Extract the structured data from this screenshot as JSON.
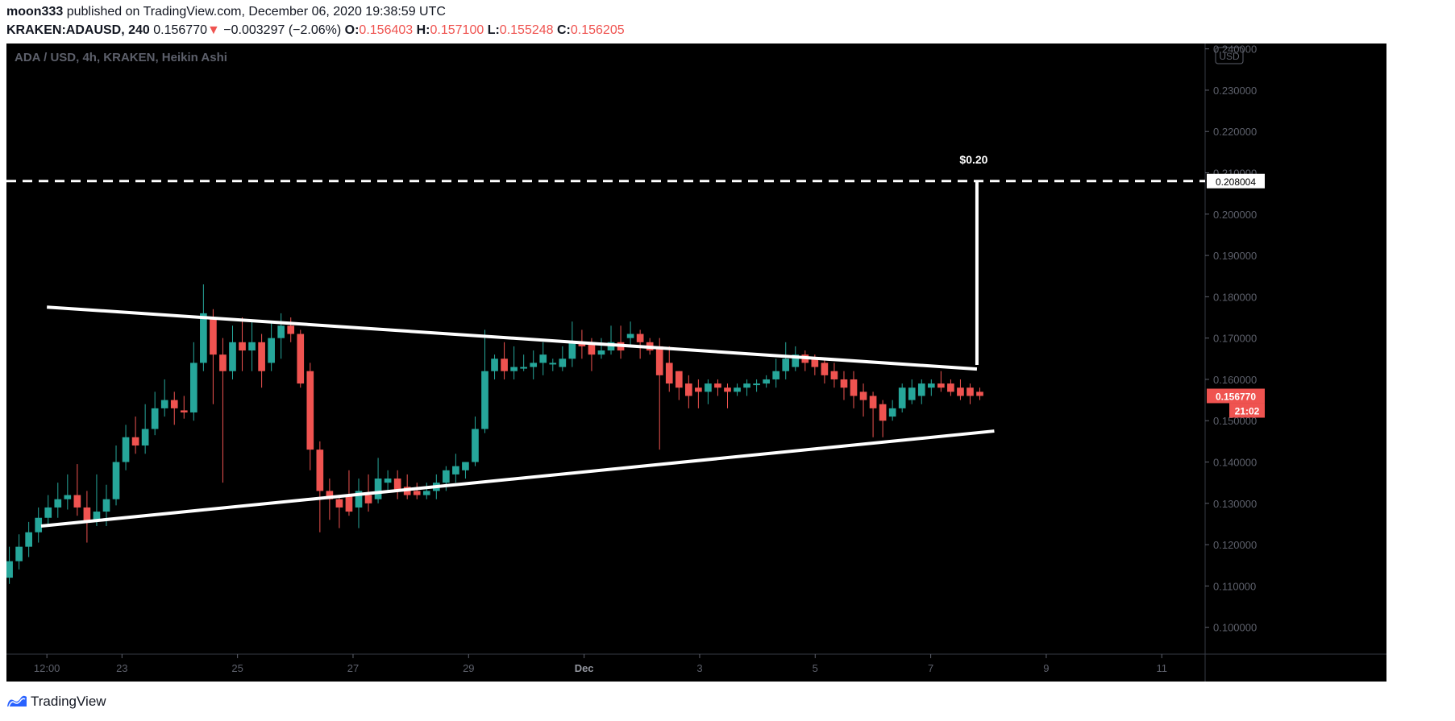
{
  "header": {
    "author": "moon333",
    "published_text": "published on TradingView.com, December 06, 2020 19:38:59 UTC",
    "symbol": "KRAKEN:ADAUSD, 240",
    "last_price": "0.156770",
    "change_arrow": "▼",
    "change": "−0.003297 (−2.06%)",
    "open_label": "O:",
    "open": "0.156403",
    "high_label": "H:",
    "high": "0.157100",
    "low_label": "L:",
    "low": "0.155248",
    "close_label": "C:",
    "close": "0.156205"
  },
  "footer": {
    "brand": "TradingView"
  },
  "chart_data": {
    "type": "candlestick",
    "title": "ADA / USD, 4h, KRAKEN, Heikin Ashi",
    "currency_badge": "USD",
    "y_ticks": [
      "0.100000",
      "0.110000",
      "0.120000",
      "0.130000",
      "0.140000",
      "0.150000",
      "0.160000",
      "0.170000",
      "0.180000",
      "0.190000",
      "0.200000",
      "0.210000",
      "0.220000",
      "0.230000",
      "0.240000"
    ],
    "ylim": [
      0.0935,
      0.2413
    ],
    "x_ticks": [
      "12:00",
      "23",
      "25",
      "27",
      "29",
      "Dec",
      "3",
      "5",
      "7",
      "9",
      "11"
    ],
    "xlim": [
      0.0,
      20.75
    ],
    "x_tick_positions": [
      2.0,
      4.0,
      6.0,
      8.0,
      10.0,
      12.0,
      14.0,
      16.0,
      18.0,
      20.0
    ],
    "x_tick_first": 0.7,
    "current_price_label": "0.156770",
    "countdown_label": "21:02",
    "target_label_value": "0.208004",
    "target_price": 0.208004,
    "target_annotation": "$0.20",
    "colors": {
      "up": "#26a69a",
      "down": "#ef5350",
      "background": "#000000",
      "lines": "#ffffff",
      "axis_text": "#5d606b"
    },
    "candles": [
      [
        0.112,
        0.116,
        0.1105,
        0.1195
      ],
      [
        0.116,
        0.1195,
        0.114,
        0.1225
      ],
      [
        0.1195,
        0.123,
        0.117,
        0.1255
      ],
      [
        0.123,
        0.1265,
        0.1205,
        0.129
      ],
      [
        0.1265,
        0.129,
        0.1245,
        0.132
      ],
      [
        0.129,
        0.131,
        0.1265,
        0.135
      ],
      [
        0.131,
        0.132,
        0.1285,
        0.137
      ],
      [
        0.132,
        0.129,
        0.127,
        0.1395
      ],
      [
        0.129,
        0.1255,
        0.1205,
        0.133
      ],
      [
        0.126,
        0.128,
        0.1245,
        0.137
      ],
      [
        0.128,
        0.131,
        0.1245,
        0.1345
      ],
      [
        0.131,
        0.14,
        0.1295,
        0.144
      ],
      [
        0.14,
        0.146,
        0.138,
        0.149
      ],
      [
        0.146,
        0.144,
        0.142,
        0.151
      ],
      [
        0.144,
        0.148,
        0.142,
        0.154
      ],
      [
        0.148,
        0.153,
        0.1465,
        0.157
      ],
      [
        0.153,
        0.155,
        0.151,
        0.16
      ],
      [
        0.155,
        0.153,
        0.149,
        0.157
      ],
      [
        0.1525,
        0.152,
        0.1505,
        0.156
      ],
      [
        0.152,
        0.164,
        0.15,
        0.169
      ],
      [
        0.164,
        0.176,
        0.162,
        0.183
      ],
      [
        0.175,
        0.166,
        0.154,
        0.177
      ],
      [
        0.166,
        0.162,
        0.135,
        0.17
      ],
      [
        0.162,
        0.169,
        0.16,
        0.173
      ],
      [
        0.169,
        0.167,
        0.162,
        0.175
      ],
      [
        0.167,
        0.169,
        0.162,
        0.174
      ],
      [
        0.169,
        0.162,
        0.158,
        0.171
      ],
      [
        0.164,
        0.17,
        0.162,
        0.174
      ],
      [
        0.17,
        0.173,
        0.165,
        0.176
      ],
      [
        0.173,
        0.171,
        0.169,
        0.175
      ],
      [
        0.171,
        0.159,
        0.158,
        0.172
      ],
      [
        0.162,
        0.143,
        0.138,
        0.164
      ],
      [
        0.143,
        0.133,
        0.123,
        0.145
      ],
      [
        0.133,
        0.131,
        0.126,
        0.136
      ],
      [
        0.131,
        0.129,
        0.124,
        0.132
      ],
      [
        0.132,
        0.128,
        0.127,
        0.138
      ],
      [
        0.129,
        0.133,
        0.124,
        0.136
      ],
      [
        0.132,
        0.13,
        0.128,
        0.137
      ],
      [
        0.131,
        0.136,
        0.13,
        0.141
      ],
      [
        0.135,
        0.136,
        0.133,
        0.138
      ],
      [
        0.136,
        0.133,
        0.131,
        0.138
      ],
      [
        0.134,
        0.132,
        0.131,
        0.137
      ],
      [
        0.133,
        0.132,
        0.131,
        0.135
      ],
      [
        0.132,
        0.133,
        0.131,
        0.135
      ],
      [
        0.133,
        0.135,
        0.131,
        0.137
      ],
      [
        0.135,
        0.138,
        0.133,
        0.139
      ],
      [
        0.137,
        0.139,
        0.135,
        0.142
      ],
      [
        0.138,
        0.14,
        0.136,
        0.14
      ],
      [
        0.14,
        0.148,
        0.139,
        0.151
      ],
      [
        0.148,
        0.162,
        0.147,
        0.172
      ],
      [
        0.162,
        0.165,
        0.16,
        0.166
      ],
      [
        0.165,
        0.162,
        0.16,
        0.169
      ],
      [
        0.162,
        0.163,
        0.16,
        0.168
      ],
      [
        0.163,
        0.163,
        0.162,
        0.166
      ],
      [
        0.163,
        0.164,
        0.16,
        0.167
      ],
      [
        0.164,
        0.166,
        0.161,
        0.169
      ],
      [
        0.164,
        0.164,
        0.162,
        0.165
      ],
      [
        0.163,
        0.165,
        0.162,
        0.168
      ],
      [
        0.165,
        0.169,
        0.163,
        0.174
      ],
      [
        0.169,
        0.168,
        0.165,
        0.172
      ],
      [
        0.169,
        0.166,
        0.162,
        0.17
      ],
      [
        0.166,
        0.167,
        0.165,
        0.17
      ],
      [
        0.167,
        0.169,
        0.166,
        0.173
      ],
      [
        0.169,
        0.167,
        0.165,
        0.173
      ],
      [
        0.17,
        0.171,
        0.168,
        0.174
      ],
      [
        0.171,
        0.169,
        0.165,
        0.172
      ],
      [
        0.169,
        0.167,
        0.166,
        0.17
      ],
      [
        0.168,
        0.161,
        0.143,
        0.17
      ],
      [
        0.164,
        0.159,
        0.157,
        0.168
      ],
      [
        0.162,
        0.158,
        0.155,
        0.162
      ],
      [
        0.159,
        0.156,
        0.153,
        0.161
      ],
      [
        0.158,
        0.157,
        0.153,
        0.16
      ],
      [
        0.157,
        0.159,
        0.154,
        0.16
      ],
      [
        0.159,
        0.158,
        0.156,
        0.16
      ],
      [
        0.158,
        0.157,
        0.153,
        0.159
      ],
      [
        0.157,
        0.158,
        0.156,
        0.159
      ],
      [
        0.158,
        0.159,
        0.156,
        0.16
      ],
      [
        0.159,
        0.159,
        0.157,
        0.16
      ],
      [
        0.159,
        0.16,
        0.158,
        0.161
      ],
      [
        0.16,
        0.162,
        0.158,
        0.165
      ],
      [
        0.162,
        0.165,
        0.16,
        0.169
      ],
      [
        0.163,
        0.166,
        0.162,
        0.168
      ],
      [
        0.166,
        0.164,
        0.162,
        0.167
      ],
      [
        0.165,
        0.163,
        0.161,
        0.166
      ],
      [
        0.164,
        0.161,
        0.159,
        0.165
      ],
      [
        0.162,
        0.16,
        0.158,
        0.164
      ],
      [
        0.16,
        0.158,
        0.155,
        0.162
      ],
      [
        0.16,
        0.156,
        0.153,
        0.162
      ],
      [
        0.157,
        0.155,
        0.151,
        0.159
      ],
      [
        0.156,
        0.153,
        0.146,
        0.157
      ],
      [
        0.154,
        0.15,
        0.146,
        0.155
      ],
      [
        0.151,
        0.153,
        0.15,
        0.155
      ],
      [
        0.153,
        0.158,
        0.152,
        0.159
      ],
      [
        0.155,
        0.158,
        0.154,
        0.16
      ],
      [
        0.156,
        0.159,
        0.154,
        0.16
      ],
      [
        0.158,
        0.159,
        0.156,
        0.16
      ],
      [
        0.159,
        0.158,
        0.157,
        0.162
      ],
      [
        0.159,
        0.157,
        0.156,
        0.16
      ],
      [
        0.158,
        0.156,
        0.155,
        0.16
      ],
      [
        0.158,
        0.156,
        0.154,
        0.159
      ],
      [
        0.157,
        0.156,
        0.155,
        0.158
      ]
    ],
    "trendlines": [
      {
        "name": "upper",
        "x1": 0.7,
        "y1": 0.1775,
        "x2": 16.8,
        "y2": 0.1625
      },
      {
        "name": "lower",
        "x1": 0.6,
        "y1": 0.1245,
        "x2": 17.1,
        "y2": 0.1475
      },
      {
        "name": "target-vertical",
        "x1": 16.8,
        "y1": 0.1635,
        "x2": 16.8,
        "y2": 0.208004
      }
    ]
  }
}
